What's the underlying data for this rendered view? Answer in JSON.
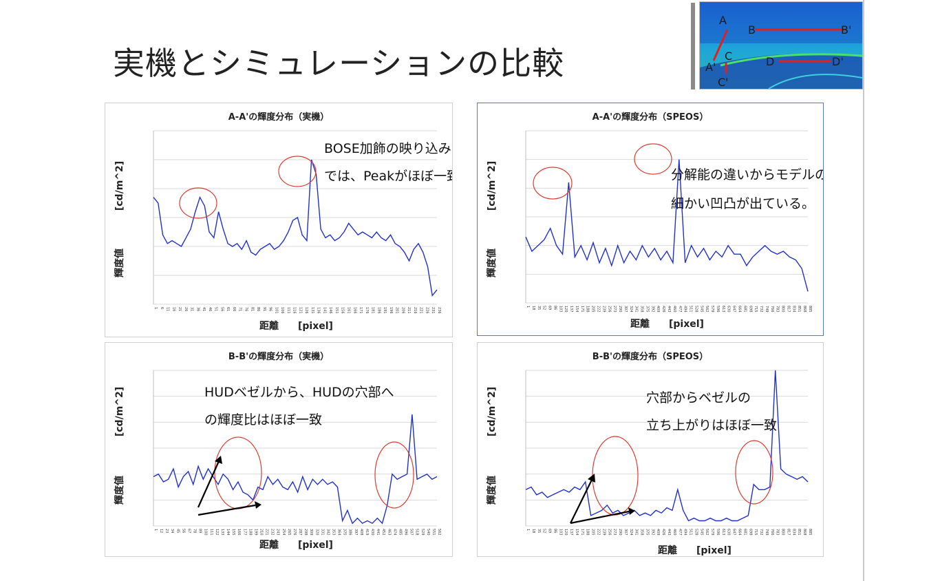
{
  "slide": {
    "title": "実機とシミュレーションの比較"
  },
  "thumbnail": {
    "labels": [
      "A",
      "A'",
      "B",
      "B'",
      "C",
      "C'",
      "D",
      "D'"
    ]
  },
  "colors": {
    "series": "#1f2fd0",
    "circle": "#e03a2f",
    "grid": "#d9d9d9",
    "arrow": "#000000"
  },
  "chart_data": [
    {
      "type": "line",
      "title": "A-A'の輝度分布（実機）",
      "xlabel": "距離　　[pixel]",
      "ylabel_top": "[cd/m^2]",
      "ylabel_bottom": "輝度値",
      "ylim": [
        0,
        6
      ],
      "grid": true,
      "x_ticks": [
        "1",
        "6",
        "11",
        "16",
        "21",
        "26",
        "31",
        "36",
        "41",
        "46",
        "51",
        "56",
        "61",
        "66",
        "71",
        "76",
        "81",
        "86",
        "91",
        "96",
        "101",
        "106",
        "111",
        "116",
        "121",
        "126",
        "131",
        "136",
        "141",
        "146",
        "151",
        "156",
        "161",
        "166",
        "171",
        "176",
        "181",
        "186",
        "191",
        "196",
        "201",
        "206",
        "211",
        "216",
        "221",
        "226",
        "231",
        "236"
      ],
      "series": [
        {
          "values": [
            3.7,
            3.5,
            2.4,
            2.1,
            2.2,
            2.1,
            2.0,
            2.3,
            2.6,
            3.2,
            3.7,
            3.4,
            2.5,
            2.3,
            3.2,
            2.6,
            2.1,
            2.0,
            2.1,
            1.9,
            2.2,
            1.8,
            1.7,
            1.9,
            2.0,
            2.1,
            1.9,
            2.0,
            2.2,
            2.5,
            2.9,
            3.0,
            2.4,
            2.2,
            5.0,
            4.5,
            2.6,
            2.3,
            2.4,
            2.2,
            2.3,
            2.5,
            2.8,
            2.6,
            2.4,
            2.5,
            2.4,
            2.3,
            2.5,
            2.3,
            2.2,
            2.4,
            2.1,
            2.0,
            1.8,
            1.5,
            1.9,
            2.1,
            1.8,
            1.3,
            0.3,
            0.5
          ]
        }
      ],
      "annotations": [
        "BOSE加飾の映り込み",
        "では、Peakがほぼ一致"
      ]
    },
    {
      "type": "line",
      "title": "A-A'の輝度分布（SPEOS）",
      "xlabel": "距離　　[pixel]",
      "ylabel_top": "[cd/m^2]",
      "ylabel_bottom": "輝度値",
      "ylim": [
        0,
        6
      ],
      "grid": true,
      "x_ticks": [
        "1",
        "18",
        "35",
        "52",
        "69",
        "86",
        "103",
        "120",
        "137",
        "154",
        "171",
        "188",
        "205",
        "222",
        "239",
        "256",
        "273",
        "290",
        "307",
        "324",
        "341",
        "358",
        "375",
        "392",
        "409",
        "426",
        "443",
        "460",
        "477",
        "494",
        "511",
        "528",
        "545",
        "562",
        "579",
        "596",
        "613",
        "630",
        "647",
        "664",
        "681",
        "698",
        "715",
        "732",
        "749",
        "766",
        "783",
        "800",
        "817",
        "834",
        "851",
        "868",
        "885"
      ],
      "series": [
        {
          "values": [
            2.3,
            1.8,
            2.0,
            2.2,
            2.6,
            2.0,
            1.7,
            4.2,
            1.6,
            2.0,
            1.5,
            2.1,
            1.4,
            1.9,
            1.3,
            2.0,
            1.4,
            1.8,
            1.5,
            2.0,
            1.6,
            1.9,
            1.5,
            1.8,
            1.4,
            5.0,
            1.4,
            2.0,
            1.6,
            1.9,
            1.5,
            1.8,
            1.6,
            2.0,
            1.7,
            1.7,
            1.3,
            1.6,
            1.8,
            2.0,
            1.8,
            1.7,
            1.8,
            1.6,
            1.5,
            1.2,
            0.4
          ]
        }
      ],
      "annotations": [
        "分解能の違いからモデルの方が",
        "細かい凹凸が出ている。"
      ]
    },
    {
      "type": "line",
      "title": "B-B'の輝度分布（実機）",
      "xlabel": "距離　　[pixel]",
      "ylabel_top": "[cd/m^2]",
      "ylabel_bottom": "輝度値",
      "ylim": [
        0,
        6
      ],
      "grid": true,
      "x_ticks": [
        "1",
        "12",
        "23",
        "34",
        "45",
        "56",
        "67",
        "78",
        "89",
        "100",
        "111",
        "122",
        "133",
        "144",
        "155",
        "166",
        "177",
        "188",
        "199",
        "210",
        "221",
        "232",
        "243",
        "254",
        "265",
        "276",
        "287",
        "298",
        "309",
        "320",
        "331",
        "342",
        "353",
        "364",
        "375",
        "386",
        "397",
        "408",
        "419",
        "430",
        "441",
        "452",
        "463",
        "474",
        "485",
        "496",
        "507",
        "518",
        "529",
        "540",
        "551",
        "562"
      ],
      "series": [
        {
          "values": [
            1.9,
            2.0,
            1.7,
            1.8,
            2.2,
            1.5,
            1.9,
            2.1,
            1.6,
            2.3,
            1.8,
            2.2,
            1.9,
            1.6,
            2.0,
            1.8,
            1.4,
            1.7,
            1.3,
            1.2,
            1.0,
            1.5,
            1.4,
            1.9,
            1.6,
            1.8,
            1.5,
            1.4,
            1.7,
            1.3,
            1.9,
            1.4,
            1.8,
            1.6,
            1.8,
            1.6,
            1.7,
            1.5,
            0.2,
            0.6,
            0.1,
            0.3,
            0.1,
            0.2,
            0.1,
            0.3,
            0.1,
            0.8,
            2.0,
            1.8,
            1.9,
            2.0,
            4.3,
            1.8,
            1.9,
            2.0,
            1.8,
            1.9
          ]
        }
      ],
      "annotations": [
        "HUDベゼルから、HUDの穴部へ",
        "の輝度比はほぼ一致"
      ]
    },
    {
      "type": "line",
      "title": "B-B'の輝度分布（SPEOS）",
      "xlabel": "距離　　[pixel]",
      "ylabel_top": "[cd/m^2]",
      "ylabel_bottom": "輝度値",
      "ylim": [
        0,
        6
      ],
      "grid": true,
      "x_ticks": [
        "1",
        "18",
        "35",
        "52",
        "69",
        "86",
        "103",
        "120",
        "137",
        "154",
        "171",
        "188",
        "205",
        "222",
        "239",
        "256",
        "273",
        "290",
        "307",
        "324",
        "341",
        "358",
        "375",
        "392",
        "409",
        "426",
        "443",
        "460",
        "477",
        "494",
        "511",
        "528",
        "545",
        "562",
        "579",
        "596",
        "613",
        "630",
        "647",
        "664",
        "681",
        "698",
        "715",
        "732",
        "749",
        "766",
        "783",
        "800",
        "817",
        "834",
        "851",
        "868",
        "885"
      ],
      "series": [
        {
          "values": [
            1.4,
            1.5,
            1.2,
            1.3,
            1.1,
            1.2,
            1.3,
            1.4,
            1.3,
            1.5,
            1.4,
            1.7,
            0.4,
            0.5,
            0.6,
            0.8,
            0.5,
            0.6,
            0.4,
            0.5,
            0.6,
            0.4,
            0.5,
            0.4,
            0.6,
            0.5,
            0.7,
            0.6,
            1.4,
            0.6,
            0.2,
            0.3,
            0.2,
            0.2,
            0.3,
            0.2,
            0.2,
            0.3,
            0.2,
            0.2,
            0.3,
            0.4,
            1.6,
            1.4,
            1.4,
            1.5,
            6.0,
            2.2,
            2.0,
            1.9,
            1.8,
            1.9,
            1.7
          ]
        }
      ],
      "annotations": [
        "穴部からベゼルの",
        "立ち上がりはほぼ一致"
      ]
    }
  ]
}
